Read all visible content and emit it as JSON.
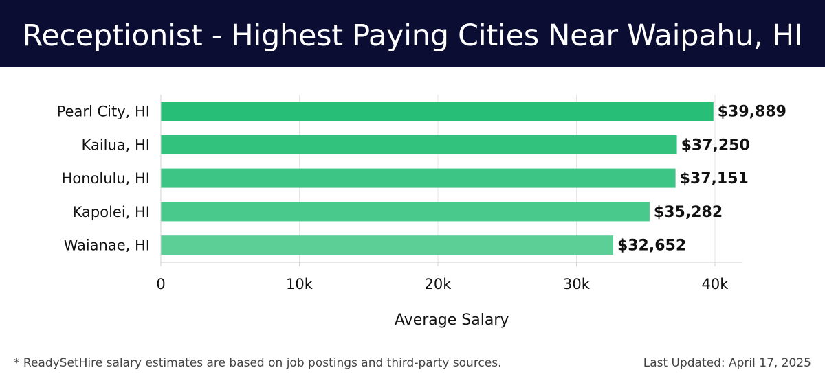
{
  "header": {
    "title": "Receptionist - Highest Paying Cities Near Waipahu, HI"
  },
  "chart_data": {
    "type": "bar",
    "orientation": "horizontal",
    "title": "Receptionist - Highest Paying Cities Near Waipahu, HI",
    "categories": [
      "Pearl City, HI",
      "Kailua, HI",
      "Honolulu, HI",
      "Kapolei, HI",
      "Waianae, HI"
    ],
    "values": [
      39889,
      37250,
      37151,
      35282,
      32652
    ],
    "value_labels": [
      "$39,889",
      "$37,250",
      "$37,151",
      "$35,282",
      "$32,652"
    ],
    "xlabel": "Average Salary",
    "xlim": [
      0,
      42000
    ],
    "xticks": [
      0,
      10000,
      20000,
      30000,
      40000
    ],
    "xtick_labels": [
      "0",
      "10k",
      "20k",
      "30k",
      "40k"
    ],
    "grid": "vertical",
    "colors": [
      "#27be77",
      "#33c27e",
      "#3dc585",
      "#49c98c",
      "#5ccf97"
    ]
  },
  "footer": {
    "note": "* ReadySetHire salary estimates are based on job postings and third-party sources.",
    "updated": "Last Updated: April 17, 2025"
  }
}
